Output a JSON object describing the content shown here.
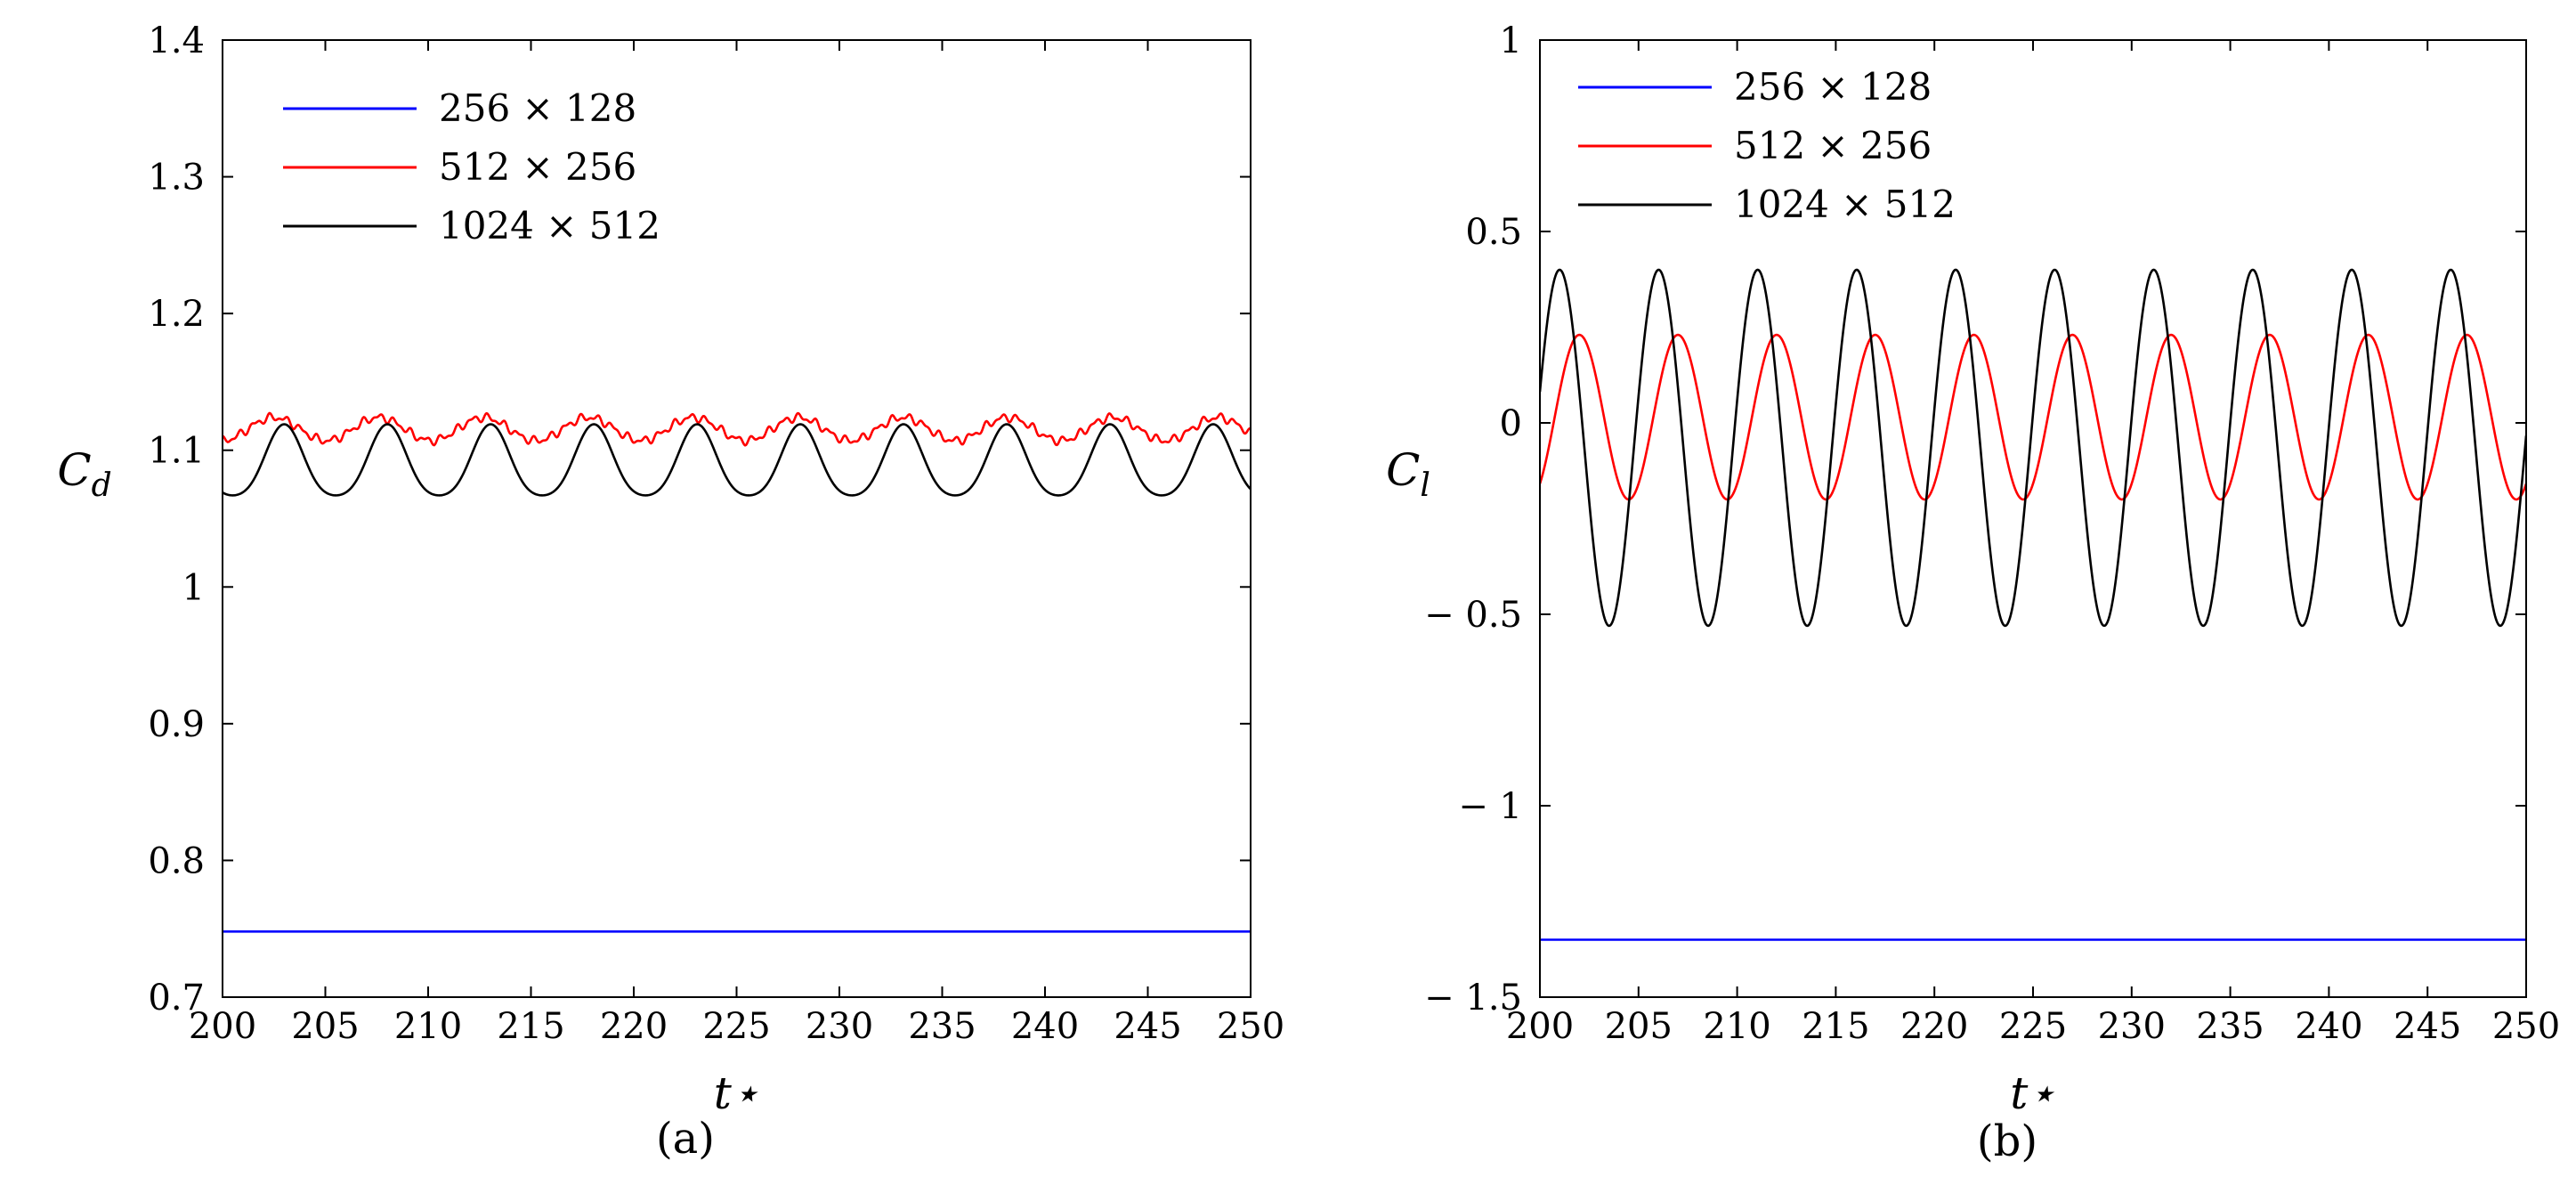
{
  "chart_data": [
    {
      "type": "line",
      "panel_label": "(a)",
      "xlabel": "t⋆",
      "ylabel": "C_d",
      "ylabel_main": "C",
      "ylabel_sub": "d",
      "xlim": [
        200,
        250
      ],
      "ylim": [
        0.7,
        1.4
      ],
      "xticks": [
        200,
        205,
        210,
        215,
        220,
        225,
        230,
        235,
        240,
        245,
        250
      ],
      "xtick_labels": [
        "200",
        "205",
        "210",
        "215",
        "220",
        "225",
        "230",
        "235",
        "240",
        "245",
        "250"
      ],
      "yticks": [
        0.7,
        0.8,
        0.9,
        1.0,
        1.1,
        1.2,
        1.3,
        1.4
      ],
      "ytick_labels": [
        "0.7",
        "0.8",
        "0.9",
        "1",
        "1.1",
        "1.2",
        "1.3",
        "1.4"
      ],
      "grid": false,
      "legend_position": "top-left",
      "series": [
        {
          "name": "256 × 128",
          "color": "#0000ff",
          "kind": "constant",
          "value": 0.748
        },
        {
          "name": "512 × 256",
          "color": "#ff0000",
          "kind": "oscillation",
          "mean": 1.1155,
          "amplitude": 0.0085,
          "period": 5.1,
          "phase": 2.5,
          "noise": 0.0035
        },
        {
          "name": "1024 × 512",
          "color": "#000000",
          "kind": "oscillation",
          "mean": 1.093,
          "amplitude": 0.026,
          "period": 5.02,
          "phase": 3.0,
          "sharpen": 0.6
        }
      ]
    },
    {
      "type": "line",
      "panel_label": "(b)",
      "xlabel": "t⋆",
      "ylabel": "C_l",
      "ylabel_main": "C",
      "ylabel_sub": "l",
      "xlim": [
        200,
        250
      ],
      "ylim": [
        -1.5,
        1.0
      ],
      "xticks": [
        200,
        205,
        210,
        215,
        220,
        225,
        230,
        235,
        240,
        245,
        250
      ],
      "xtick_labels": [
        "200",
        "205",
        "210",
        "215",
        "220",
        "225",
        "230",
        "235",
        "240",
        "245",
        "250"
      ],
      "yticks": [
        -1.5,
        -1.0,
        -0.5,
        0.0,
        0.5,
        1.0
      ],
      "ytick_labels": [
        "− 1.5",
        "− 1",
        "− 0.5",
        "0",
        "0.5",
        "1"
      ],
      "grid": false,
      "legend_position": "top-left",
      "series": [
        {
          "name": "256 × 128",
          "color": "#0000ff",
          "kind": "constant",
          "value": -1.35
        },
        {
          "name": "512 × 256",
          "color": "#ff0000",
          "kind": "oscillation",
          "mean": 0.015,
          "amplitude": 0.215,
          "period": 5.0,
          "phase": 2.0
        },
        {
          "name": "1024 × 512",
          "color": "#000000",
          "kind": "oscillation",
          "mean": -0.065,
          "amplitude": 0.465,
          "period": 5.02,
          "phase": 1.0
        }
      ]
    }
  ]
}
